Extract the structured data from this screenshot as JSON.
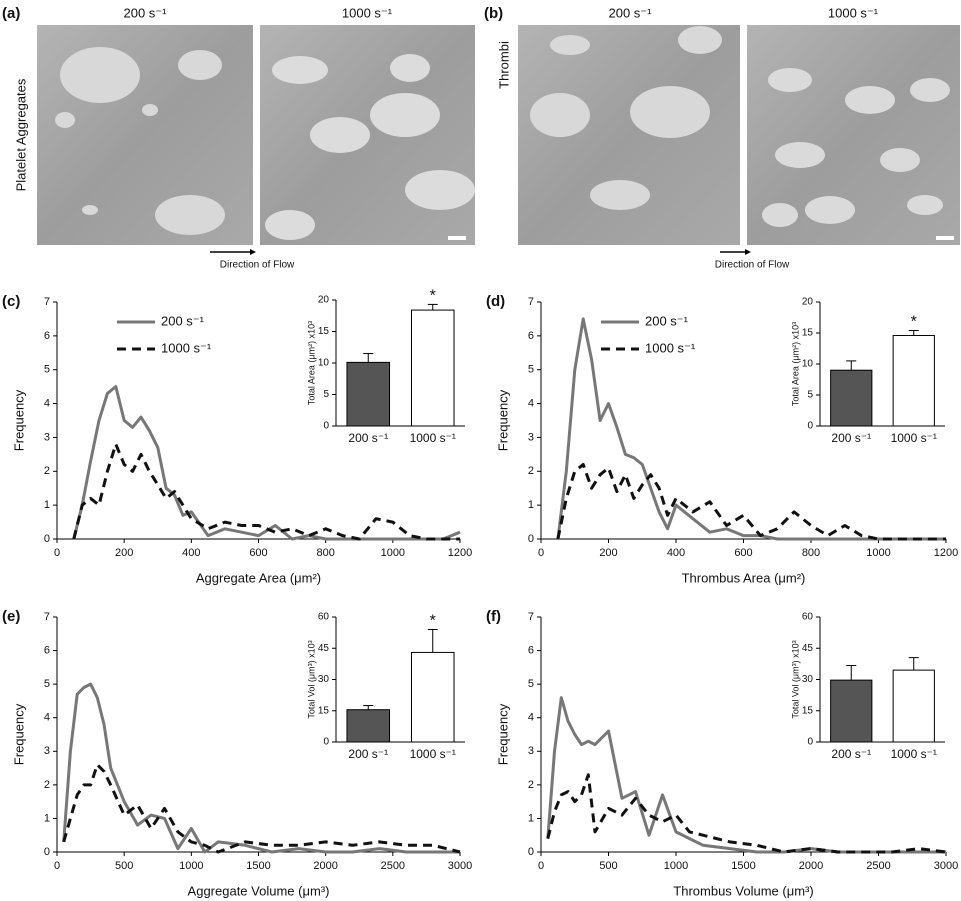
{
  "images": [
    {
      "panel": "(a)",
      "row_label": "Platelet Aggregates",
      "columns": [
        "200 s⁻¹",
        "1000 s⁻¹"
      ],
      "caption": "Direction of Flow"
    },
    {
      "panel": "(b)",
      "row_label": "Thrombi",
      "columns": [
        "200 s⁻¹",
        "1000 s⁻¹"
      ],
      "caption": "Direction of Flow"
    }
  ],
  "chart_data": [
    {
      "type": "line",
      "panel": "(c)",
      "x_label": "Aggregate Area (μm²)",
      "y_label": "Frequency",
      "legend": "upper left",
      "x": [
        50,
        75,
        100,
        125,
        150,
        175,
        200,
        225,
        250,
        275,
        300,
        325,
        350,
        375,
        400,
        450,
        500,
        550,
        600,
        650,
        700,
        750,
        800,
        850,
        900,
        950,
        1000,
        1050,
        1100,
        1150,
        1200
      ],
      "series": [
        {
          "name": "200 s⁻¹",
          "color": "#777777",
          "style": "solid",
          "values": [
            0,
            1,
            2.3,
            3.5,
            4.3,
            4.5,
            3.5,
            3.3,
            3.6,
            3.2,
            2.7,
            1.5,
            1.3,
            0.7,
            0.8,
            0.1,
            0.3,
            0.2,
            0.1,
            0.4,
            0,
            0.1,
            0,
            0,
            0,
            0,
            0,
            0,
            0,
            0,
            0.2
          ]
        },
        {
          "name": "1000 s⁻¹",
          "color": "#111111",
          "style": "dashed",
          "values": [
            0,
            1,
            1.2,
            1,
            2,
            2.8,
            2.2,
            2,
            2.5,
            2,
            1.6,
            1.2,
            1.4,
            1,
            0.6,
            0.3,
            0.5,
            0.4,
            0.4,
            0.2,
            0.3,
            0.1,
            0.3,
            0.1,
            0,
            0.6,
            0.5,
            0.1,
            0,
            0,
            0
          ]
        }
      ],
      "xlim": [
        0,
        1200
      ],
      "xticks": [
        0,
        200,
        400,
        600,
        800,
        1000,
        1200
      ],
      "ylim": [
        0,
        7
      ],
      "yticks": [
        0,
        1,
        2,
        3,
        4,
        5,
        6,
        7
      ]
    },
    {
      "type": "bar",
      "y_label": "Total Area (μm²) x10³",
      "categories": [
        "200 s⁻¹",
        "1000 s⁻¹"
      ],
      "values": [
        10.1,
        18.4
      ],
      "errors": [
        1.4,
        0.9
      ],
      "colors": [
        "#555555",
        "#ffffff"
      ],
      "annotations": [
        {
          "text": "*",
          "x": "1000 s⁻¹"
        }
      ],
      "ylim": [
        0,
        20
      ],
      "yticks": [
        0,
        5,
        10,
        15,
        20
      ]
    },
    {
      "type": "line",
      "panel": "(d)",
      "x_label": "Thrombus Area (μm²)",
      "y_label": "Frequency",
      "legend": "upper left",
      "x": [
        50,
        75,
        100,
        125,
        150,
        175,
        200,
        225,
        250,
        275,
        300,
        325,
        350,
        375,
        400,
        450,
        500,
        550,
        600,
        650,
        700,
        750,
        800,
        850,
        900,
        950,
        1000,
        1050,
        1100,
        1150,
        1200
      ],
      "series": [
        {
          "name": "200 s⁻¹",
          "color": "#777777",
          "style": "solid",
          "values": [
            0,
            2,
            5,
            6.5,
            5.3,
            3.5,
            4,
            3.3,
            2.5,
            2.4,
            2.2,
            1.5,
            0.8,
            0.3,
            1,
            0.6,
            0.2,
            0.3,
            0.1,
            0.1,
            0,
            0,
            0,
            0,
            0,
            0,
            0,
            0,
            0,
            0,
            0
          ]
        },
        {
          "name": "1000 s⁻¹",
          "color": "#111111",
          "style": "dashed",
          "values": [
            0,
            1.2,
            2,
            2.2,
            1.5,
            1.9,
            2.1,
            1.4,
            1.9,
            1.2,
            1.6,
            1.9,
            1.5,
            0.7,
            1.2,
            0.8,
            1.1,
            0.4,
            0.7,
            0.1,
            0.3,
            0.8,
            0.4,
            0.1,
            0.4,
            0.1,
            0,
            0,
            0,
            0,
            0
          ]
        }
      ],
      "xlim": [
        0,
        1200
      ],
      "xticks": [
        0,
        200,
        400,
        600,
        800,
        1000,
        1200
      ],
      "ylim": [
        0,
        7
      ],
      "yticks": [
        0,
        1,
        2,
        3,
        4,
        5,
        6,
        7
      ]
    },
    {
      "type": "bar",
      "y_label": "Total Area (μm²) x10³",
      "categories": [
        "200 s⁻¹",
        "1000 s⁻¹"
      ],
      "values": [
        9,
        14.6
      ],
      "errors": [
        1.5,
        0.8
      ],
      "colors": [
        "#555555",
        "#ffffff"
      ],
      "annotations": [
        {
          "text": "*",
          "x": "1000 s⁻¹"
        }
      ],
      "ylim": [
        0,
        20
      ],
      "yticks": [
        0,
        5,
        10,
        15,
        20
      ]
    },
    {
      "type": "line",
      "panel": "(e)",
      "x_label": "Aggregate Volume (μm³)",
      "y_label": "Frequency",
      "x": [
        50,
        100,
        150,
        200,
        250,
        300,
        350,
        400,
        500,
        600,
        700,
        800,
        900,
        1000,
        1100,
        1200,
        1400,
        1600,
        1800,
        2000,
        2200,
        2400,
        2600,
        2800,
        3000
      ],
      "series": [
        {
          "name": "200 s⁻¹",
          "color": "#777777",
          "style": "solid",
          "values": [
            0.3,
            3,
            4.7,
            4.9,
            5,
            4.6,
            3.8,
            2.5,
            1.5,
            0.8,
            1.1,
            1,
            0.1,
            0.7,
            0,
            0.3,
            0.2,
            0,
            0.1,
            0,
            0,
            0.1,
            0,
            0,
            0
          ]
        },
        {
          "name": "1000 s⁻¹",
          "color": "#111111",
          "style": "dashed",
          "values": [
            0.3,
            1,
            1.7,
            2,
            2,
            2.6,
            2.4,
            2,
            1.1,
            1.4,
            0.7,
            1.3,
            0.6,
            0.3,
            0.2,
            0,
            0.3,
            0.2,
            0.2,
            0.3,
            0.2,
            0.3,
            0.2,
            0.2,
            0
          ]
        }
      ],
      "xlim": [
        0,
        3000
      ],
      "xticks": [
        0,
        500,
        1000,
        1500,
        2000,
        2500,
        3000
      ],
      "ylim": [
        0,
        7
      ],
      "yticks": [
        0,
        1,
        2,
        3,
        4,
        5,
        6,
        7
      ]
    },
    {
      "type": "bar",
      "y_label": "Total Vol (μm³) x10³",
      "categories": [
        "200 s⁻¹",
        "1000 s⁻¹"
      ],
      "values": [
        15.5,
        43
      ],
      "errors": [
        2,
        11
      ],
      "colors": [
        "#555555",
        "#ffffff"
      ],
      "annotations": [
        {
          "text": "*",
          "x": "1000 s⁻¹"
        }
      ],
      "ylim": [
        0,
        60
      ],
      "yticks": [
        0,
        15,
        30,
        45,
        60
      ]
    },
    {
      "type": "line",
      "panel": "(f)",
      "x_label": "Thrombus Volume (μm³)",
      "y_label": "Frequency",
      "x": [
        50,
        100,
        150,
        200,
        250,
        300,
        350,
        400,
        500,
        600,
        700,
        800,
        900,
        1000,
        1100,
        1200,
        1400,
        1600,
        1800,
        2000,
        2200,
        2400,
        2600,
        2800,
        3000
      ],
      "series": [
        {
          "name": "200 s⁻¹",
          "color": "#777777",
          "style": "solid",
          "values": [
            0.4,
            3,
            4.6,
            3.9,
            3.5,
            3.2,
            3.3,
            3.2,
            3.6,
            1.6,
            1.8,
            0.5,
            1.7,
            0.6,
            0.4,
            0.2,
            0.1,
            0,
            0,
            0.1,
            0,
            0,
            0,
            0,
            0
          ]
        },
        {
          "name": "1000 s⁻¹",
          "color": "#111111",
          "style": "dashed",
          "values": [
            0.4,
            1.2,
            1.7,
            1.8,
            1.5,
            1.7,
            2.3,
            0.6,
            1.3,
            1.1,
            1.6,
            1.1,
            0.9,
            1.1,
            0.6,
            0.5,
            0.3,
            0.2,
            0,
            0.1,
            0,
            0,
            0,
            0.1,
            0
          ]
        }
      ],
      "xlim": [
        0,
        3000
      ],
      "xticks": [
        0,
        500,
        1000,
        1500,
        2000,
        2500,
        3000
      ],
      "ylim": [
        0,
        7
      ],
      "yticks": [
        0,
        1,
        2,
        3,
        4,
        5,
        6,
        7
      ]
    },
    {
      "type": "bar",
      "y_label": "Total Vol (μm³) x10³",
      "categories": [
        "200 s⁻¹",
        "1000 s⁻¹"
      ],
      "values": [
        29.7,
        34.5
      ],
      "errors": [
        7,
        6
      ],
      "colors": [
        "#555555",
        "#ffffff"
      ],
      "ylim": [
        0,
        60
      ],
      "yticks": [
        0,
        15,
        30,
        45,
        60
      ]
    }
  ]
}
